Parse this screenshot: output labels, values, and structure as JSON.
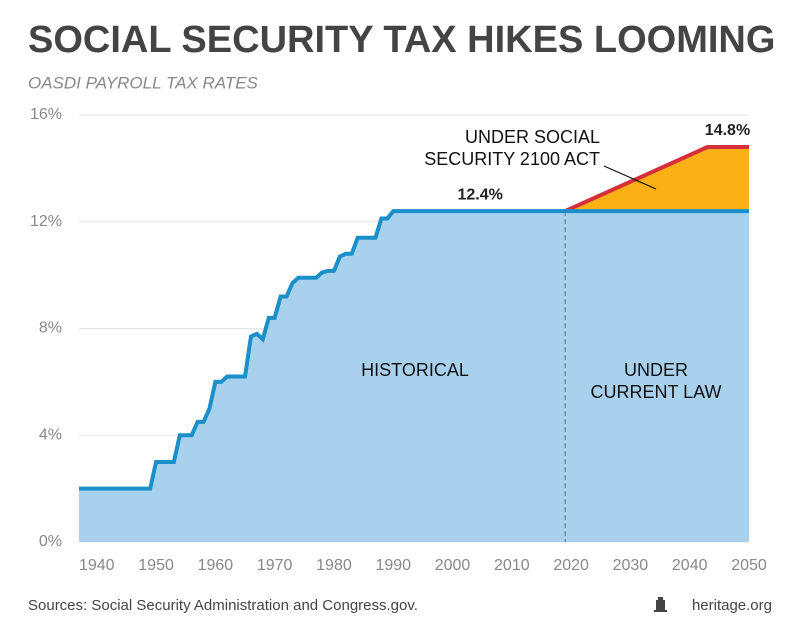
{
  "chart_data": {
    "type": "area",
    "title": "SOCIAL SECURITY TAX HIKES LOOMING",
    "subtitle": "OASDI PAYROLL TAX RATES",
    "series": [
      {
        "color": "#a8d1ee",
        "line_color": "#1a8fc9",
        "x": [
          1937,
          1938,
          1939,
          1940,
          1941,
          1942,
          1943,
          1944,
          1945,
          1946,
          1947,
          1948,
          1949,
          1950,
          1951,
          1952,
          1953,
          1954,
          1955,
          1956,
          1957,
          1958,
          1959,
          1960,
          1961,
          1962,
          1963,
          1964,
          1965,
          1966,
          1967,
          1968,
          1969,
          1970,
          1971,
          1972,
          1973,
          1974,
          1975,
          1976,
          1977,
          1978,
          1979,
          1980,
          1981,
          1982,
          1983,
          1984,
          1985,
          1986,
          1987,
          1988,
          1989,
          1990,
          1991,
          1992,
          1993,
          1994,
          1995,
          1996,
          1997,
          1998,
          1999,
          2000,
          2001,
          2002,
          2003,
          2004,
          2005,
          2006,
          2007,
          2008,
          2009,
          2010,
          2011,
          2012,
          2013,
          2014,
          2015,
          2016,
          2017,
          2018,
          2019
        ],
        "values": [
          2,
          2,
          2,
          2,
          2,
          2,
          2,
          2,
          2,
          2,
          2,
          2,
          2,
          3,
          3,
          3,
          3,
          4,
          4,
          4,
          4.5,
          4.5,
          5,
          6,
          6,
          6.2,
          6.2,
          6.2,
          6.2,
          7.7,
          7.8,
          7.6,
          8.4,
          8.4,
          9.2,
          9.2,
          9.7,
          9.9,
          9.9,
          9.9,
          9.9,
          10.1,
          10.16,
          10.16,
          10.7,
          10.8,
          10.8,
          11.4,
          11.4,
          11.4,
          11.4,
          12.12,
          12.12,
          12.4,
          12.4,
          12.4,
          12.4,
          12.4,
          12.4,
          12.4,
          12.4,
          12.4,
          12.4,
          12.4,
          12.4,
          12.4,
          12.4,
          12.4,
          12.4,
          12.4,
          12.4,
          12.4,
          12.4,
          12.4,
          12.4,
          12.4,
          12.4,
          12.4,
          12.4,
          12.4,
          12.4,
          12.4,
          12.4
        ]
      },
      {
        "color": "#a8d1ee",
        "line_color": "#1a8fc9",
        "x": [
          2019,
          2050
        ],
        "values": [
          12.4,
          12.4
        ],
        "value_labels": [
          "12.4%",
          null
        ]
      },
      {
        "color": "#fbb116",
        "line_color": "#d62f3b",
        "base": 12.4,
        "x": [
          2019,
          2043,
          2050
        ],
        "values": [
          12.4,
          14.8,
          14.8
        ],
        "value_labels": [
          null,
          "14.8%",
          null
        ]
      }
    ],
    "annotations": [
      [
        "HISTORICAL"
      ],
      [
        "UNDER",
        "CURRENT LAW"
      ],
      [
        "UNDER SOCIAL",
        "SECURITY 2100 ACT"
      ]
    ],
    "divider_x": 2019,
    "xlim": [
      1937,
      2050
    ],
    "xticks": [
      1940,
      1950,
      1960,
      1970,
      1980,
      1990,
      2000,
      2010,
      2020,
      2030,
      2040,
      2050
    ],
    "ylim": [
      0,
      16
    ],
    "yticks": [
      {
        "value": 0,
        "label": "0%"
      },
      {
        "value": 4,
        "label": "4%"
      },
      {
        "value": 8,
        "label": "8%"
      },
      {
        "value": 12,
        "label": "12%"
      },
      {
        "value": 16,
        "label": "16%"
      }
    ],
    "grid": true,
    "source": "Sources: Social Security Administration and Congress.gov.",
    "brand": "heritage.org"
  }
}
